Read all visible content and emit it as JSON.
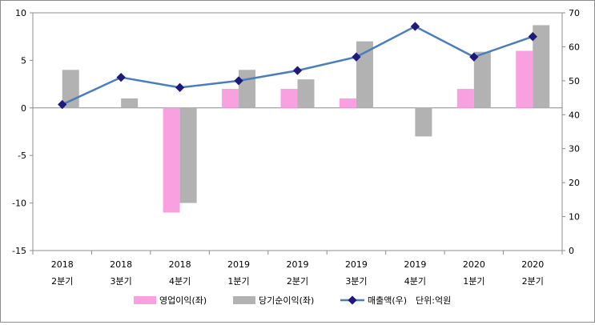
{
  "chart_data": {
    "type": "bar+line",
    "categories": [
      [
        "2018",
        "2분기"
      ],
      [
        "2018",
        "3분기"
      ],
      [
        "2018",
        "4분기"
      ],
      [
        "2019",
        "1분기"
      ],
      [
        "2019",
        "2분기"
      ],
      [
        "2019",
        "3분기"
      ],
      [
        "2019",
        "4분기"
      ],
      [
        "2020",
        "1분기"
      ],
      [
        "2020",
        "2분기"
      ]
    ],
    "series": [
      {
        "name": "영업이익(좌)",
        "type": "bar",
        "axis": "left",
        "color": "#f9a0e0",
        "values": [
          0,
          0,
          -11,
          2,
          2,
          1,
          0,
          2,
          6
        ]
      },
      {
        "name": "당기순이익(좌)",
        "type": "bar",
        "axis": "left",
        "color": "#b2b2b2",
        "values": [
          4,
          1,
          -10,
          4,
          3,
          7,
          -3,
          5.9,
          8.7
        ]
      },
      {
        "name": "매출액(우)",
        "type": "line",
        "axis": "right",
        "color": "#4a7ebb",
        "marker_color": "#1f1a7a",
        "values": [
          43,
          51,
          48,
          50,
          53,
          57,
          66,
          57,
          63
        ]
      }
    ],
    "left_axis": {
      "min": -15,
      "max": 10,
      "step": 5,
      "ticks": [
        "-15",
        "-10",
        "-5",
        "0",
        "5",
        "10"
      ]
    },
    "right_axis": {
      "min": 0,
      "max": 70,
      "step": 10,
      "ticks": [
        "0",
        "10",
        "20",
        "30",
        "40",
        "50",
        "60",
        "70"
      ]
    },
    "unit_note": "단위:억원",
    "legend_position": "bottom"
  }
}
